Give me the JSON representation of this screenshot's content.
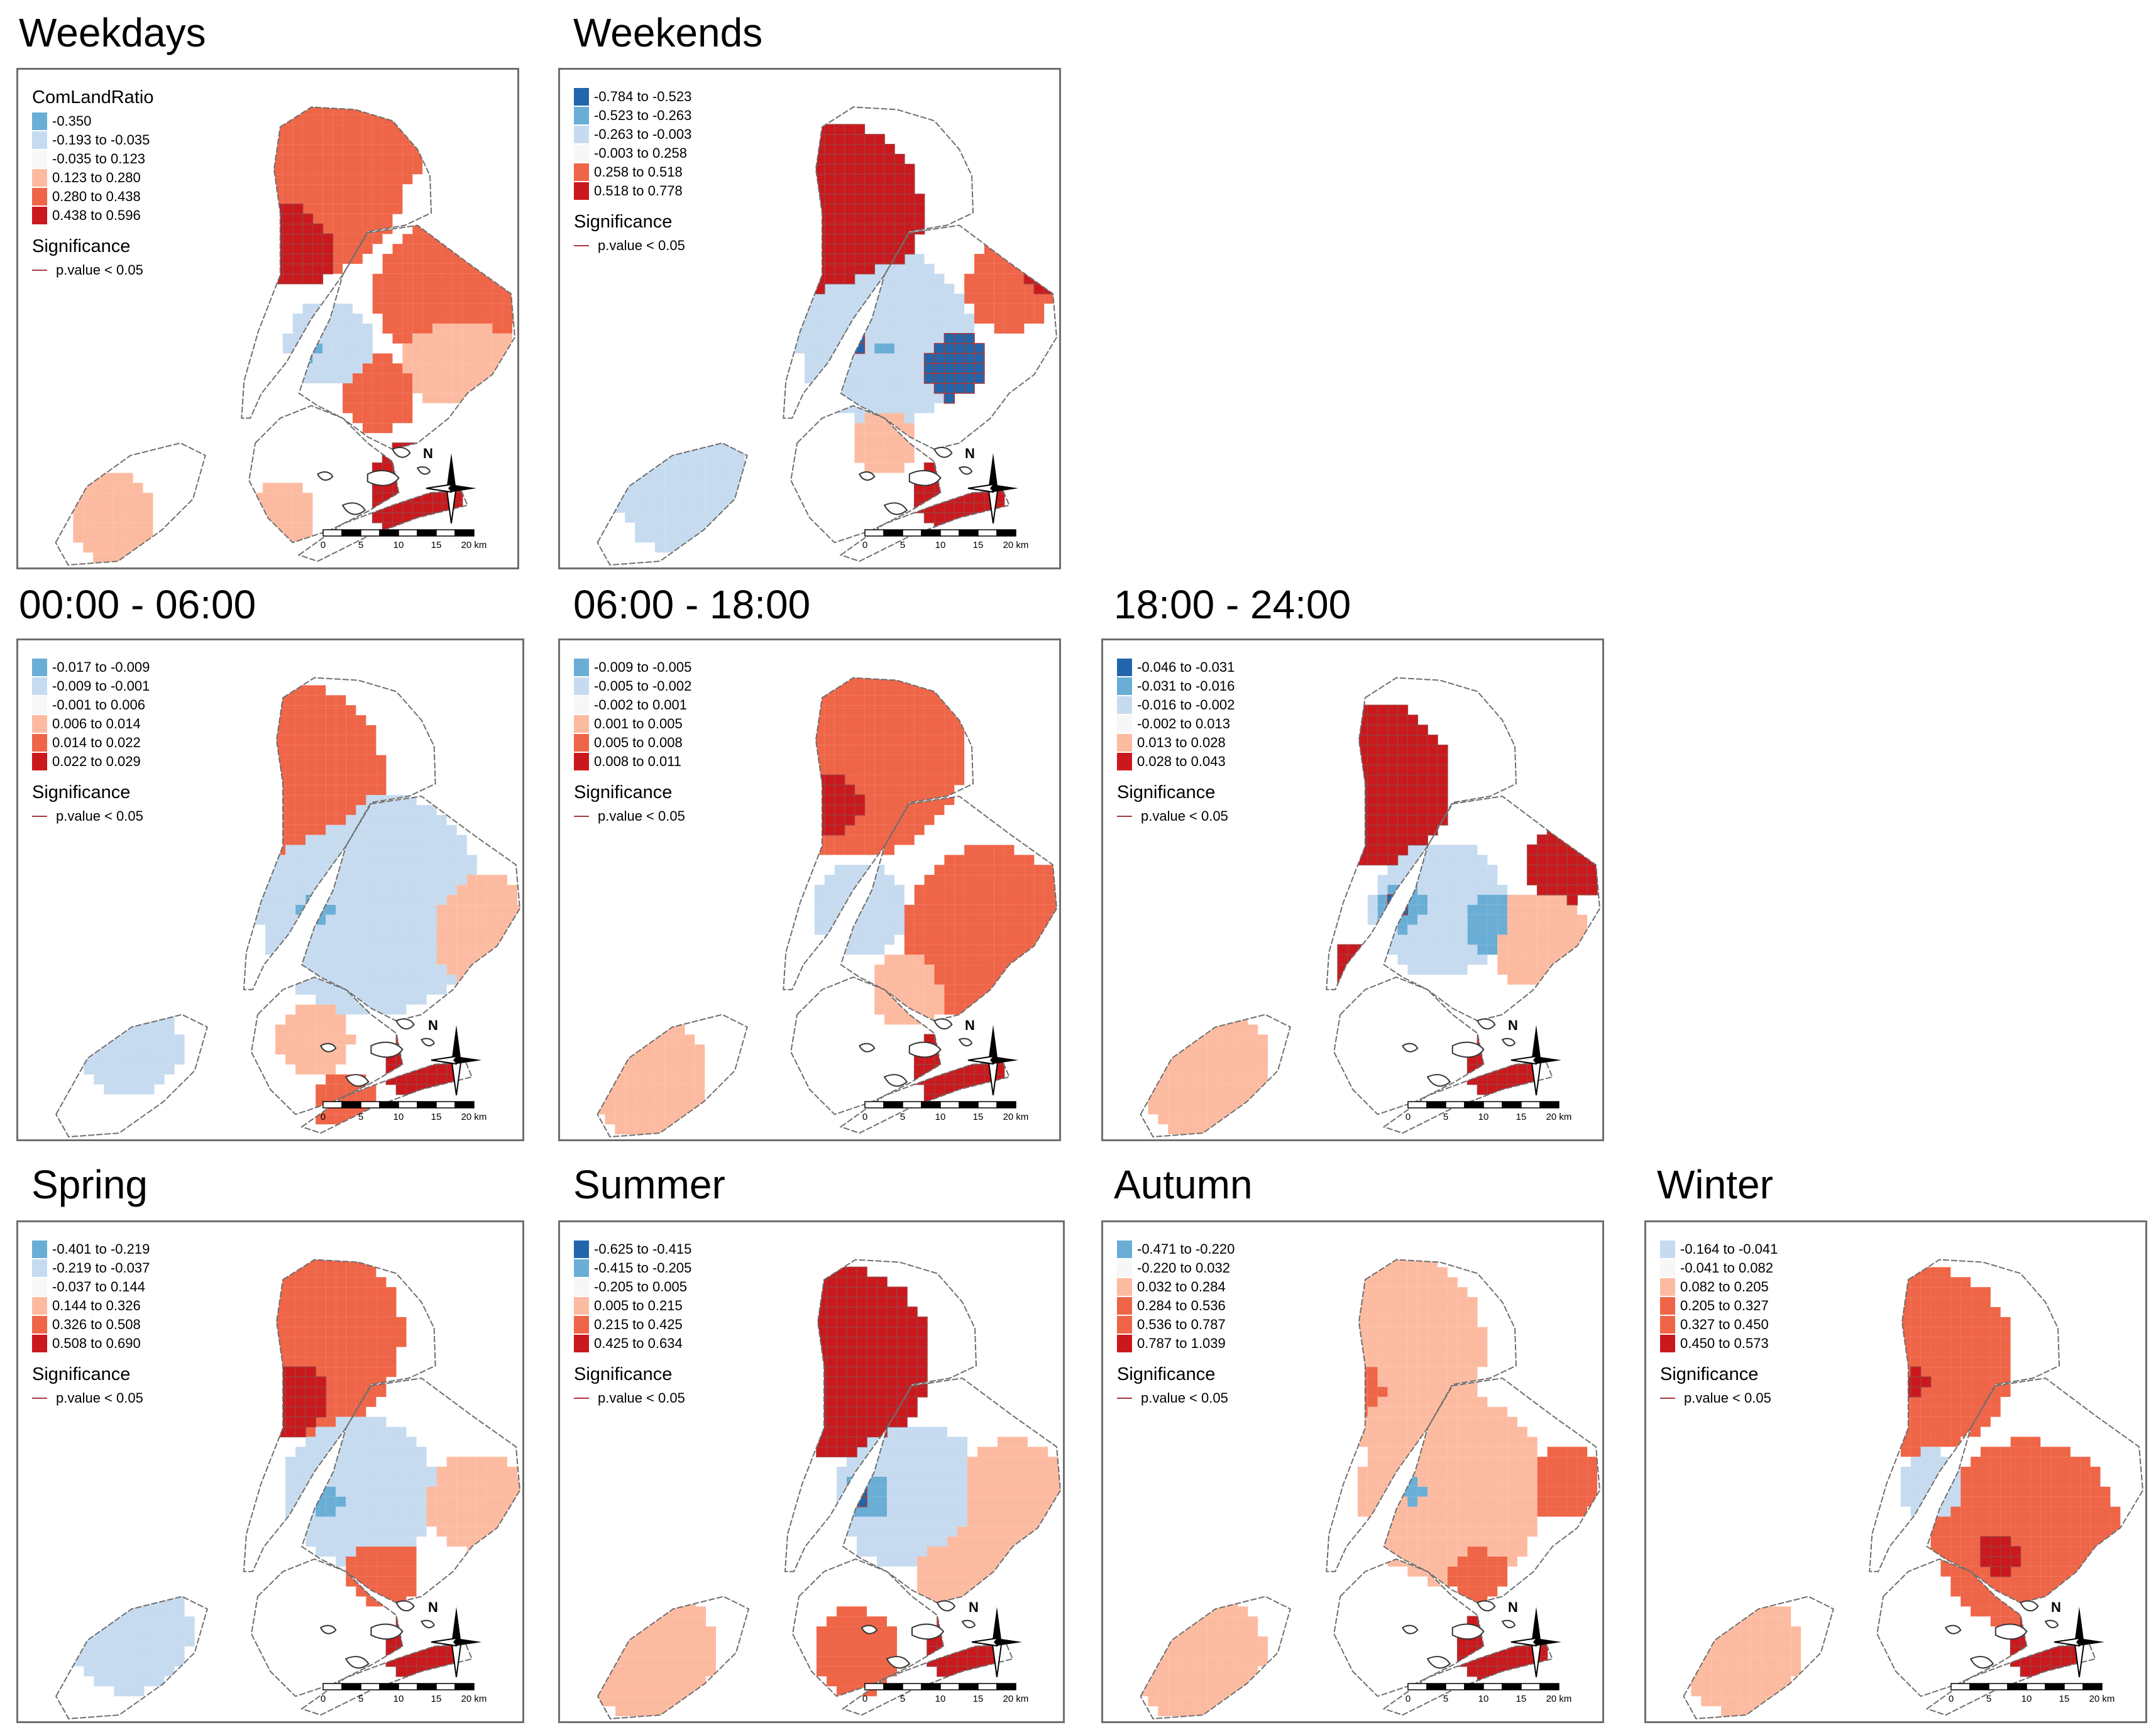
{
  "legend_titles": {
    "variable": "ComLandRatio",
    "significance": "Significance"
  },
  "significance_label": "p.value < 0.05",
  "north_label": "N",
  "scale": {
    "ticks": [
      "0",
      "5",
      "10",
      "15",
      "20 km"
    ]
  },
  "colors": {
    "neg3": "#2166ac",
    "neg2": "#6aaed6",
    "neg1": "#c6dbef",
    "zero": "#f7f7f7",
    "pos1": "#fcbba1",
    "pos2": "#ef6548",
    "pos3": "#cb181d",
    "outline": "#6e6e6e",
    "sig": "#a63a3a"
  },
  "panels": [
    {
      "title": "Weekdays",
      "show_heading": true,
      "legend": [
        {
          "range": "-0.350",
          "color": "neg2"
        },
        {
          "range": "-0.193 to -0.035",
          "color": "neg1"
        },
        {
          "range": "-0.035 to 0.123",
          "color": "zero"
        },
        {
          "range": "0.123 to 0.280",
          "color": "pos1"
        },
        {
          "range": "0.280 to 0.438",
          "color": "pos2"
        },
        {
          "range": "0.438 to 0.596",
          "color": "pos3"
        }
      ]
    },
    {
      "title": "Weekends",
      "show_heading": false,
      "legend": [
        {
          "range": "-0.784 to -0.523",
          "color": "neg3"
        },
        {
          "range": "-0.523 to -0.263",
          "color": "neg2"
        },
        {
          "range": "-0.263 to -0.003",
          "color": "neg1"
        },
        {
          "range": "-0.003 to 0.258",
          "color": "zero"
        },
        {
          "range": "0.258 to 0.518",
          "color": "pos2"
        },
        {
          "range": "0.518 to 0.778",
          "color": "pos3"
        }
      ]
    },
    {
      "title": "00:00 - 06:00",
      "show_heading": false,
      "legend": [
        {
          "range": "-0.017 to -0.009",
          "color": "neg2"
        },
        {
          "range": "-0.009 to -0.001",
          "color": "neg1"
        },
        {
          "range": "-0.001 to 0.006",
          "color": "zero"
        },
        {
          "range": "0.006 to 0.014",
          "color": "pos1"
        },
        {
          "range": "0.014 to 0.022",
          "color": "pos2"
        },
        {
          "range": "0.022 to 0.029",
          "color": "pos3"
        }
      ]
    },
    {
      "title": "06:00 - 18:00",
      "show_heading": false,
      "legend": [
        {
          "range": "-0.009 to -0.005",
          "color": "neg2"
        },
        {
          "range": "-0.005 to -0.002",
          "color": "neg1"
        },
        {
          "range": "-0.002 to 0.001",
          "color": "zero"
        },
        {
          "range": "0.001 to 0.005",
          "color": "pos1"
        },
        {
          "range": "0.005 to 0.008",
          "color": "pos2"
        },
        {
          "range": "0.008 to 0.011",
          "color": "pos3"
        }
      ]
    },
    {
      "title": "18:00 - 24:00",
      "show_heading": false,
      "legend": [
        {
          "range": "-0.046 to -0.031",
          "color": "neg3"
        },
        {
          "range": "-0.031 to -0.016",
          "color": "neg2"
        },
        {
          "range": "-0.016 to -0.002",
          "color": "neg1"
        },
        {
          "range": "-0.002 to 0.013",
          "color": "zero"
        },
        {
          "range": "0.013 to 0.028",
          "color": "pos1"
        },
        {
          "range": "0.028 to 0.043",
          "color": "pos3"
        }
      ]
    },
    {
      "title": "Spring",
      "show_heading": false,
      "legend": [
        {
          "range": "-0.401 to -0.219",
          "color": "neg2"
        },
        {
          "range": "-0.219 to -0.037",
          "color": "neg1"
        },
        {
          "range": "-0.037 to 0.144",
          "color": "zero"
        },
        {
          "range": "0.144 to 0.326",
          "color": "pos1"
        },
        {
          "range": "0.326 to 0.508",
          "color": "pos2"
        },
        {
          "range": "0.508 to 0.690",
          "color": "pos3"
        }
      ]
    },
    {
      "title": "Summer",
      "show_heading": false,
      "legend": [
        {
          "range": "-0.625 to -0.415",
          "color": "neg3"
        },
        {
          "range": "-0.415 to -0.205",
          "color": "neg2"
        },
        {
          "range": "-0.205 to 0.005",
          "color": "zero"
        },
        {
          "range": "0.005 to 0.215",
          "color": "pos1"
        },
        {
          "range": "0.215 to 0.425",
          "color": "pos2"
        },
        {
          "range": "0.425 to 0.634",
          "color": "pos3"
        }
      ]
    },
    {
      "title": "Autumn",
      "show_heading": false,
      "legend": [
        {
          "range": "-0.471 to -0.220",
          "color": "neg2"
        },
        {
          "range": "-0.220 to 0.032",
          "color": "zero"
        },
        {
          "range": "0.032 to 0.284",
          "color": "pos1"
        },
        {
          "range": "0.284 to 0.536",
          "color": "pos2"
        },
        {
          "range": "0.536 to 0.787",
          "color": "pos2"
        },
        {
          "range": "0.787 to 1.039",
          "color": "pos3"
        }
      ]
    },
    {
      "title": "Winter",
      "show_heading": false,
      "legend": [
        {
          "range": "-0.164 to -0.041",
          "color": "neg1"
        },
        {
          "range": "-0.041 to 0.082",
          "color": "zero"
        },
        {
          "range": "0.082 to 0.205",
          "color": "pos1"
        },
        {
          "range": "0.205 to 0.327",
          "color": "pos2"
        },
        {
          "range": "0.327 to 0.450",
          "color": "pos2"
        },
        {
          "range": "0.450 to 0.573",
          "color": "pos3"
        }
      ]
    }
  ]
}
